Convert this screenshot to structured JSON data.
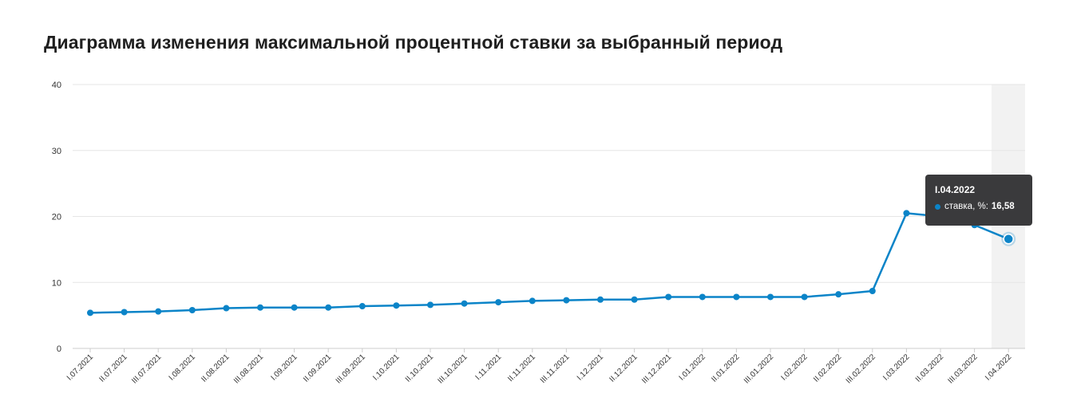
{
  "title": "Диаграмма изменения максимальной процентной ставки за выбранный период",
  "tooltip": {
    "date": "I.04.2022",
    "series_label": "ставка, %:",
    "value": "16,58"
  },
  "colors": {
    "line": "#0b84c8",
    "grid": "#e6e6e6",
    "highlight_band": "#f2f2f2",
    "tooltip_bg": "#3a3a3c"
  },
  "chart_data": {
    "type": "line",
    "title": "Диаграмма изменения максимальной процентной ставки за выбранный период",
    "xlabel": "",
    "ylabel": "",
    "ylim": [
      0,
      40
    ],
    "yticks": [
      0,
      10,
      20,
      30,
      40
    ],
    "grid": true,
    "highlighted_category": "I.04.2022",
    "categories": [
      "I.07.2021",
      "II.07.2021",
      "III.07.2021",
      "I.08.2021",
      "II.08.2021",
      "III.08.2021",
      "I.09.2021",
      "II.09.2021",
      "III.09.2021",
      "I.10.2021",
      "II.10.2021",
      "III.10.2021",
      "I.11.2021",
      "II.11.2021",
      "III.11.2021",
      "I.12.2021",
      "II.12.2021",
      "III.12.2021",
      "I.01.2022",
      "II.01.2022",
      "III.01.2022",
      "I.02.2022",
      "II.02.2022",
      "III.02.2022",
      "I.03.2022",
      "II.03.2022",
      "III.03.2022",
      "I.04.2022"
    ],
    "series": [
      {
        "name": "ставка, %",
        "values": [
          5.4,
          5.5,
          5.6,
          5.8,
          6.1,
          6.2,
          6.2,
          6.2,
          6.4,
          6.5,
          6.6,
          6.8,
          7.0,
          7.2,
          7.3,
          7.4,
          7.4,
          7.8,
          7.8,
          7.8,
          7.8,
          7.8,
          8.2,
          8.7,
          20.5,
          20.0,
          18.7,
          16.58
        ]
      }
    ]
  }
}
